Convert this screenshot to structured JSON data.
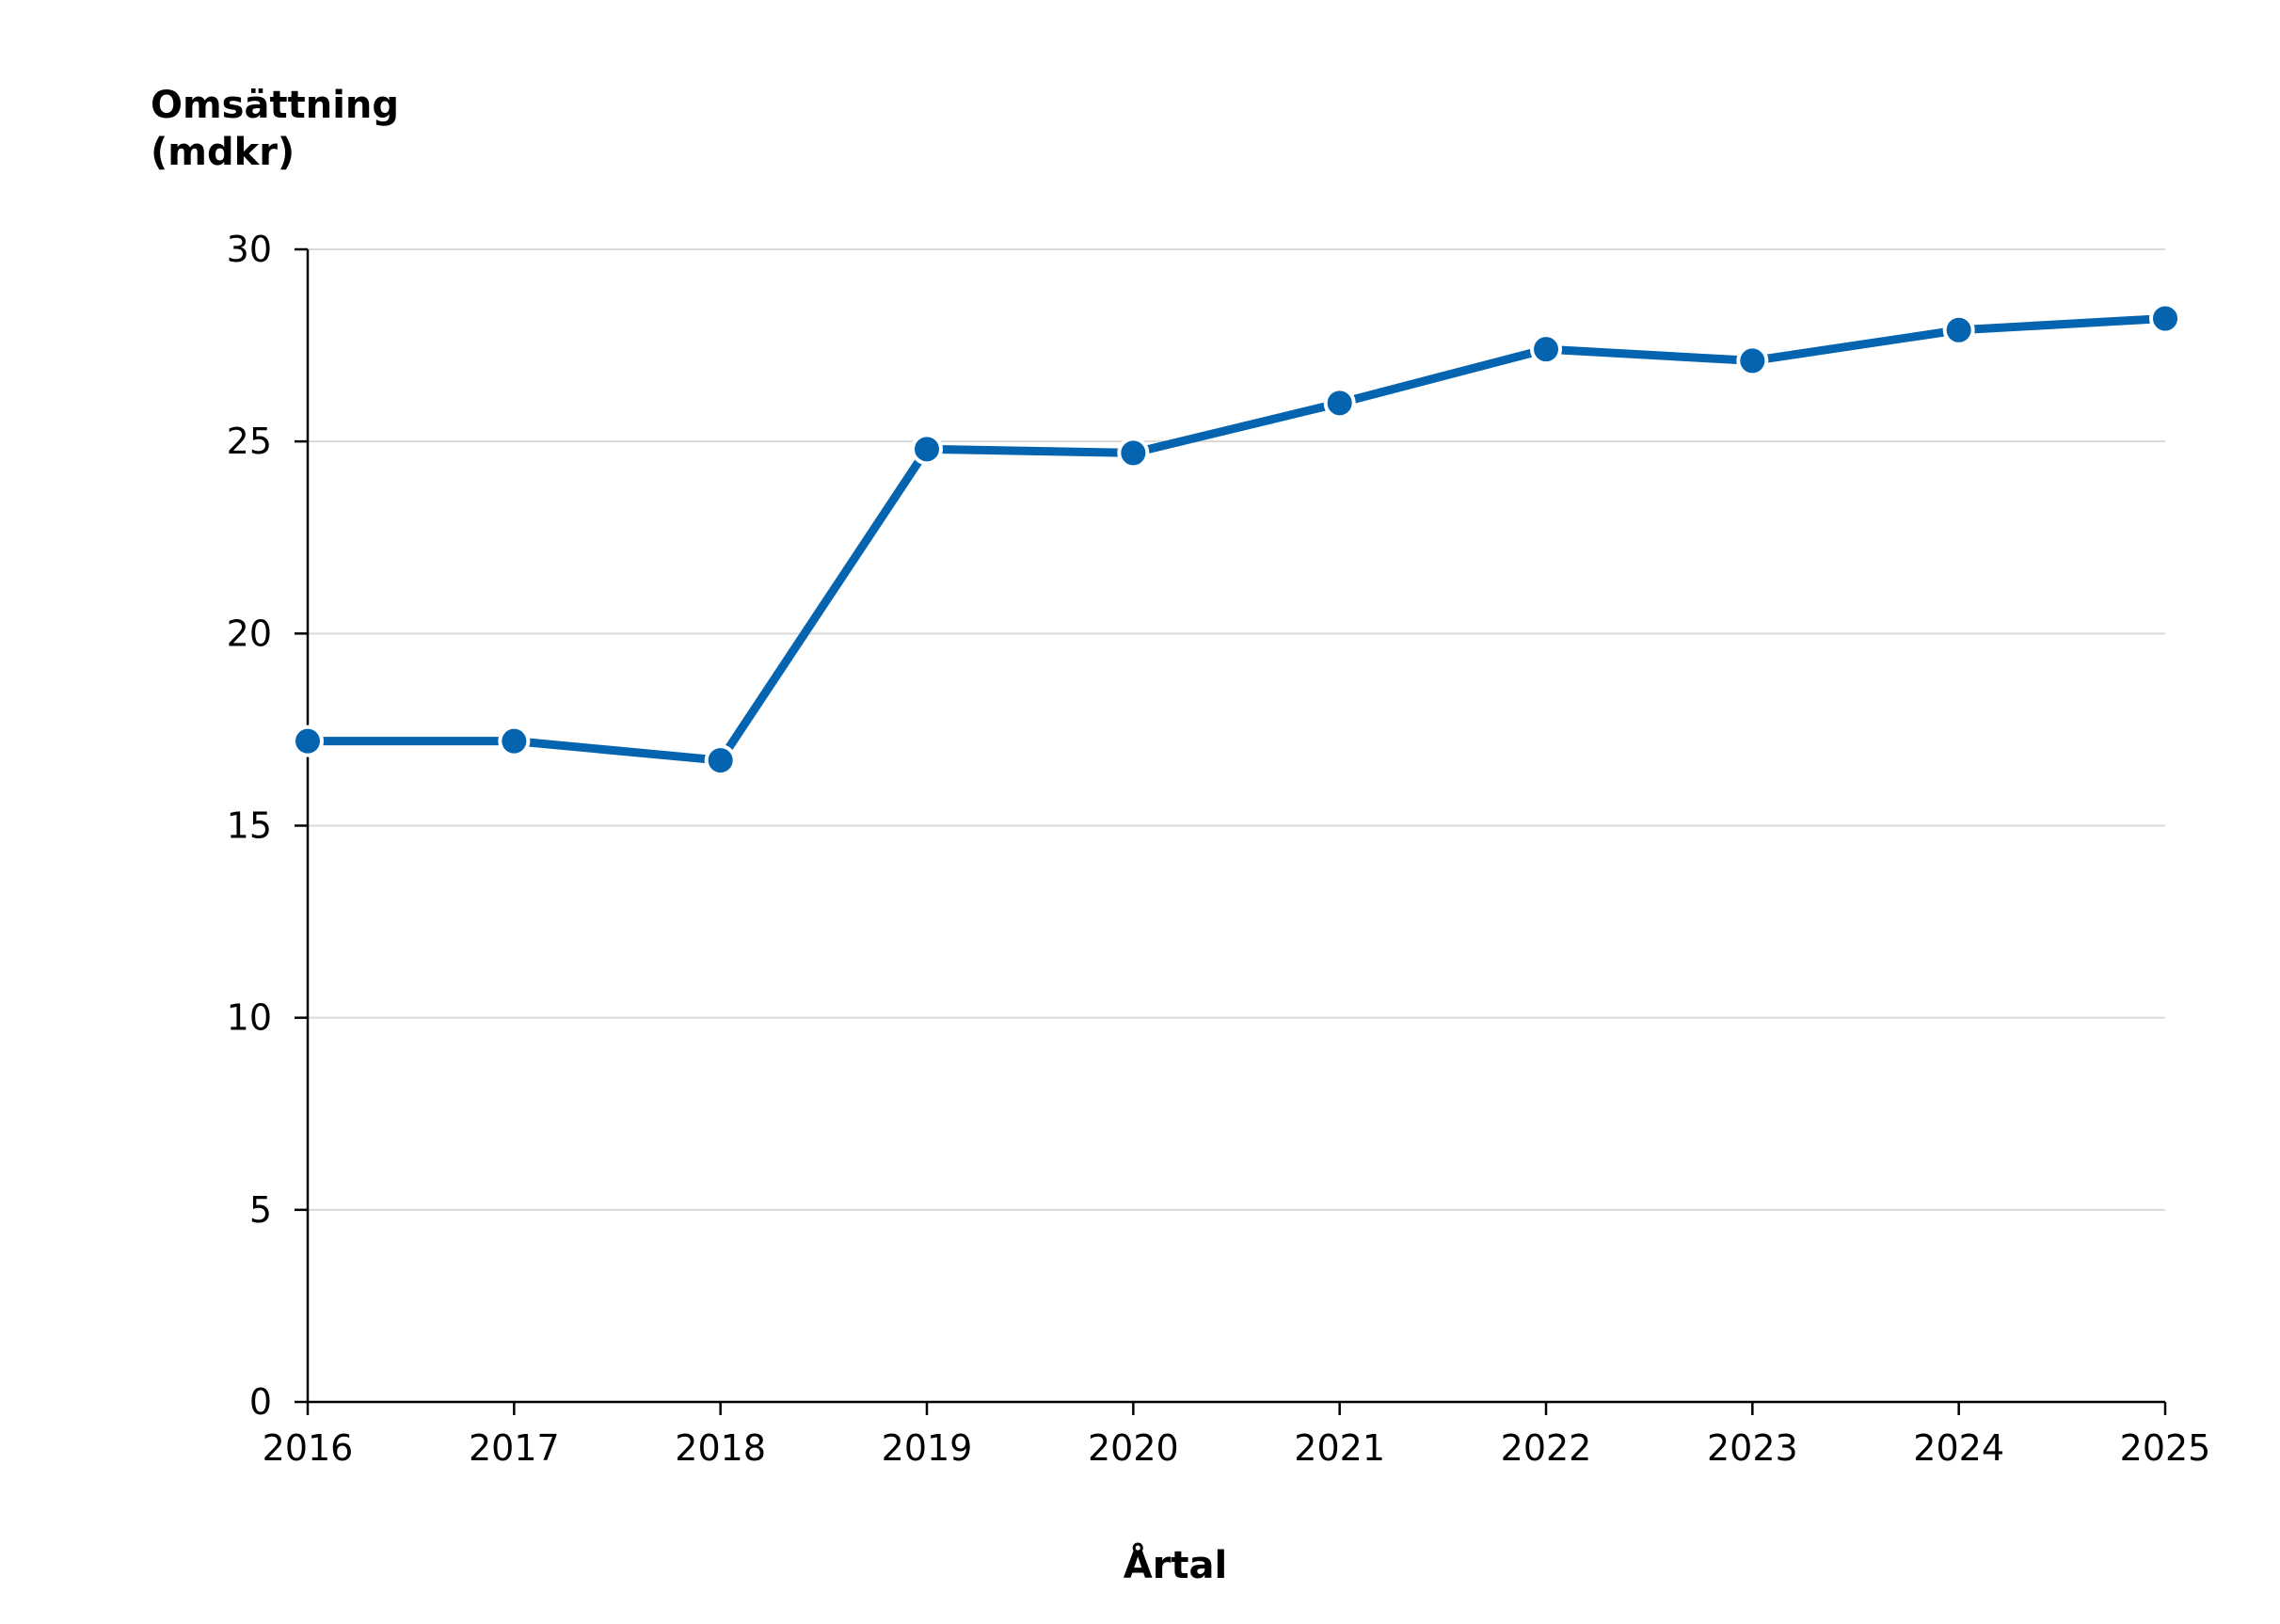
{
  "chart_data": {
    "type": "line",
    "title": "",
    "ylabel_lines": [
      "Omsättning",
      "(mdkr)"
    ],
    "xlabel": "Årtal",
    "categories": [
      "2016",
      "2017",
      "2018",
      "2019",
      "2020",
      "2021",
      "2022",
      "2023",
      "2024",
      "2025"
    ],
    "series": [
      {
        "values": [
          17.2,
          17.2,
          16.7,
          24.8,
          24.7,
          26.0,
          27.4,
          27.1,
          27.9,
          28.2
        ]
      }
    ],
    "ylim": [
      0,
      30
    ],
    "yticks": [
      0,
      5,
      10,
      15,
      20,
      25,
      30
    ],
    "ytick_labels": [
      "0",
      "5",
      "10",
      "15",
      "20",
      "25",
      "30"
    ],
    "grid": true,
    "legend": "none",
    "colors": {
      "line": "#0464AF",
      "marker_edge": "#FFFFFF",
      "grid": "#D9D9D9",
      "axis": "#000000"
    }
  }
}
